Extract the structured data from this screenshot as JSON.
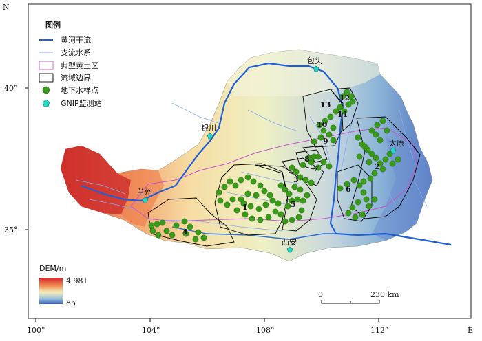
{
  "map": {
    "compass_n": "N",
    "compass_e": "E",
    "lon_ticks": [
      "100°",
      "104°",
      "108°",
      "112°"
    ],
    "lat_ticks": [
      "40°",
      "35°"
    ],
    "cities": [
      {
        "name": "包头"
      },
      {
        "name": "银川"
      },
      {
        "name": "兰州"
      },
      {
        "name": "西安"
      },
      {
        "name": "太原"
      }
    ],
    "basin_numbers": [
      "1",
      "2",
      "3",
      "4",
      "5",
      "6",
      "7",
      "8",
      "9",
      "10",
      "11",
      "12",
      "13"
    ]
  },
  "legend": {
    "title": "图例",
    "items": [
      {
        "label": "黄河干流",
        "color": "#1f5fd6"
      },
      {
        "label": "支流水系",
        "color": "#7fa6ff"
      },
      {
        "label": "典型黄土区",
        "color": "#cc55cc"
      },
      {
        "label": "流域边界",
        "color": "#000000"
      },
      {
        "label": "地下水样点",
        "color": "#3a9a1a"
      },
      {
        "label": "GNIP监测站",
        "color": "#27d6c4"
      }
    ]
  },
  "dem": {
    "title": "DEM/m",
    "max": "4 981",
    "min": "85"
  },
  "scalebar": {
    "zero": "0",
    "end": "230 km"
  }
}
